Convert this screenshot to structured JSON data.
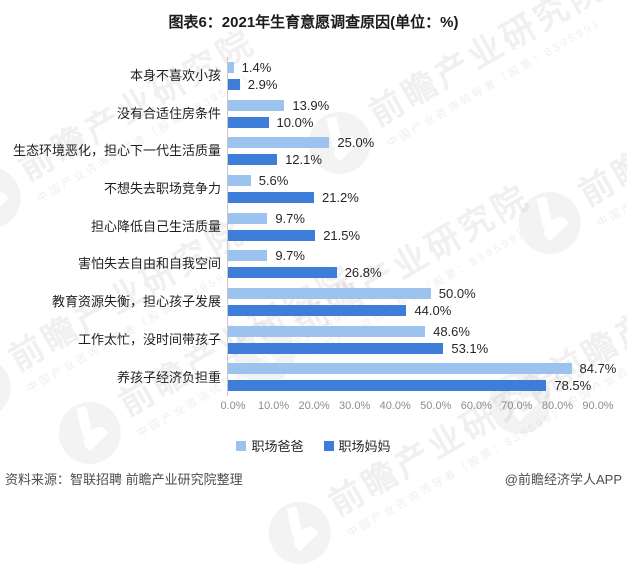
{
  "title": "图表6：2021年生育意愿调查原因(单位：%)",
  "chart_data": {
    "type": "bar",
    "orientation": "horizontal",
    "title": "图表6：2021年生育意愿调查原因(单位：%)",
    "unit": "%",
    "categories": [
      "本身不喜欢小孩",
      "没有合适住房条件",
      "生态环境恶化，担心下一代生活质量",
      "不想失去职场竞争力",
      "担心降低自己生活质量",
      "害怕失去自由和自我空间",
      "教育资源失衡，担心孩子发展",
      "工作太忙，没时间带孩子",
      "养孩子经济负担重"
    ],
    "series": [
      {
        "name": "职场爸爸",
        "color": "#9CC3EE",
        "values": [
          1.4,
          13.9,
          25.0,
          5.6,
          9.7,
          9.7,
          50.0,
          48.6,
          84.7
        ]
      },
      {
        "name": "职场妈妈",
        "color": "#3F7ED8",
        "values": [
          2.9,
          10.0,
          12.1,
          21.2,
          21.5,
          26.8,
          44.0,
          53.1,
          78.5
        ]
      }
    ],
    "x_ticks": [
      "0.0%",
      "10.0%",
      "20.0%",
      "30.0%",
      "40.0%",
      "50.0%",
      "60.0%",
      "70.0%",
      "80.0%",
      "90.0%"
    ],
    "xlim": [
      0,
      90
    ],
    "grid": false,
    "legend_position": "bottom",
    "axis_line_color": "#c9c9c9"
  },
  "legend": [
    {
      "label": "职场爸爸",
      "color": "#9CC3EE"
    },
    {
      "label": "职场妈妈",
      "color": "#3F7ED8"
    }
  ],
  "footer": {
    "source": "资料来源：智联招聘 前瞻产业研究院整理",
    "credit": "@前瞻经济学人APP"
  },
  "watermark": {
    "brand": "前瞻产业研究院",
    "sub": "中国产业咨询领导者（股票：839599）"
  }
}
